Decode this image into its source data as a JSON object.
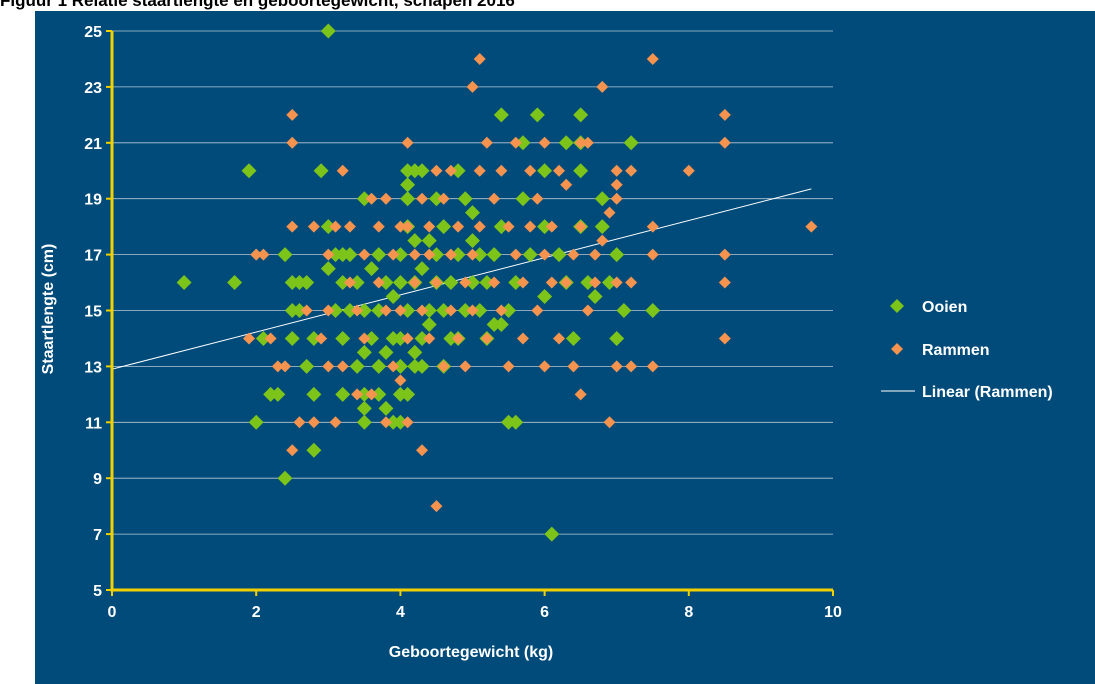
{
  "caption": "Figuur 1 Relatie staartlengte en geboortegewicht, schapen 2016",
  "colors": {
    "background": "#004b7a",
    "axis": "#f2d000",
    "grid": "#b8c8d8",
    "text": "#ffffff",
    "ooien": "#7cc31a",
    "rammen": "#f5934f",
    "trend": "#ffffff"
  },
  "chart_data": {
    "type": "scatter",
    "xlabel": "Geboortegewicht (kg)",
    "ylabel": "Staartlengte (cm)",
    "xlim": [
      0,
      10
    ],
    "ylim": [
      5,
      25
    ],
    "xticks": [
      0,
      2,
      4,
      6,
      8,
      10
    ],
    "yticks": [
      5,
      7,
      9,
      11,
      13,
      15,
      17,
      19,
      21,
      23,
      25
    ],
    "grid": "horizontal",
    "legend_position": "right",
    "series": [
      {
        "name": "Ooien",
        "marker": "diamond",
        "points": [
          [
            1.0,
            16
          ],
          [
            1.7,
            16
          ],
          [
            1.9,
            20
          ],
          [
            2.0,
            11
          ],
          [
            2.1,
            14
          ],
          [
            2.2,
            12
          ],
          [
            2.3,
            12
          ],
          [
            2.4,
            17
          ],
          [
            2.4,
            9
          ],
          [
            2.5,
            16
          ],
          [
            2.5,
            15
          ],
          [
            2.5,
            14
          ],
          [
            2.6,
            15
          ],
          [
            2.6,
            16
          ],
          [
            2.7,
            13
          ],
          [
            2.7,
            16
          ],
          [
            2.8,
            14
          ],
          [
            2.8,
            12
          ],
          [
            2.8,
            10
          ],
          [
            2.9,
            20
          ],
          [
            3.0,
            25
          ],
          [
            3.0,
            16.5
          ],
          [
            3.0,
            18
          ],
          [
            3.1,
            17
          ],
          [
            3.1,
            15
          ],
          [
            3.2,
            16
          ],
          [
            3.2,
            14
          ],
          [
            3.2,
            12
          ],
          [
            3.2,
            17
          ],
          [
            3.3,
            17
          ],
          [
            3.3,
            15
          ],
          [
            3.4,
            13
          ],
          [
            3.4,
            16
          ],
          [
            3.5,
            19
          ],
          [
            3.5,
            11
          ],
          [
            3.5,
            11.5
          ],
          [
            3.5,
            12
          ],
          [
            3.5,
            13.5
          ],
          [
            3.5,
            15
          ],
          [
            3.6,
            16.5
          ],
          [
            3.6,
            14
          ],
          [
            3.7,
            17
          ],
          [
            3.7,
            13
          ],
          [
            3.7,
            12
          ],
          [
            3.7,
            15
          ],
          [
            3.8,
            11.5
          ],
          [
            3.8,
            13.5
          ],
          [
            3.8,
            16
          ],
          [
            3.9,
            11
          ],
          [
            3.9,
            14
          ],
          [
            3.9,
            15.5
          ],
          [
            4.0,
            17
          ],
          [
            4.0,
            16
          ],
          [
            4.0,
            13
          ],
          [
            4.0,
            14
          ],
          [
            4.0,
            12
          ],
          [
            4.0,
            11
          ],
          [
            4.1,
            20
          ],
          [
            4.1,
            19.5
          ],
          [
            4.1,
            19
          ],
          [
            4.1,
            18
          ],
          [
            4.1,
            15
          ],
          [
            4.1,
            12
          ],
          [
            4.2,
            20
          ],
          [
            4.2,
            17.5
          ],
          [
            4.2,
            16
          ],
          [
            4.2,
            13.5
          ],
          [
            4.2,
            13
          ],
          [
            4.3,
            16.5
          ],
          [
            4.3,
            14
          ],
          [
            4.3,
            13
          ],
          [
            4.3,
            20
          ],
          [
            4.4,
            17.5
          ],
          [
            4.4,
            15
          ],
          [
            4.4,
            14.5
          ],
          [
            4.5,
            19
          ],
          [
            4.5,
            16
          ],
          [
            4.5,
            17
          ],
          [
            4.6,
            18
          ],
          [
            4.6,
            15
          ],
          [
            4.6,
            13
          ],
          [
            4.7,
            16
          ],
          [
            4.7,
            14
          ],
          [
            4.8,
            20
          ],
          [
            4.8,
            17
          ],
          [
            4.8,
            14
          ],
          [
            4.9,
            19
          ],
          [
            4.9,
            15
          ],
          [
            5.0,
            18.5
          ],
          [
            5.0,
            16
          ],
          [
            5.0,
            17.5
          ],
          [
            5.1,
            15
          ],
          [
            5.1,
            17
          ],
          [
            5.2,
            14
          ],
          [
            5.2,
            16
          ],
          [
            5.3,
            14.5
          ],
          [
            5.3,
            17
          ],
          [
            5.4,
            22
          ],
          [
            5.4,
            14.5
          ],
          [
            5.4,
            18
          ],
          [
            5.5,
            15
          ],
          [
            5.5,
            11
          ],
          [
            5.6,
            11
          ],
          [
            5.6,
            16
          ],
          [
            5.7,
            21
          ],
          [
            5.7,
            19
          ],
          [
            5.8,
            17
          ],
          [
            5.9,
            22
          ],
          [
            6.0,
            20
          ],
          [
            6.0,
            15.5
          ],
          [
            6.0,
            18
          ],
          [
            6.1,
            7
          ],
          [
            6.2,
            17
          ],
          [
            6.3,
            21
          ],
          [
            6.3,
            16
          ],
          [
            6.4,
            14
          ],
          [
            6.5,
            22
          ],
          [
            6.5,
            21
          ],
          [
            6.5,
            20
          ],
          [
            6.5,
            18
          ],
          [
            6.6,
            16
          ],
          [
            6.7,
            15.5
          ],
          [
            6.8,
            19
          ],
          [
            6.8,
            18
          ],
          [
            6.9,
            16
          ],
          [
            7.0,
            17
          ],
          [
            7.0,
            14
          ],
          [
            7.1,
            15
          ],
          [
            7.2,
            21
          ],
          [
            7.5,
            15
          ]
        ]
      },
      {
        "name": "Rammen",
        "marker": "diamond",
        "points": [
          [
            1.9,
            14
          ],
          [
            2.0,
            17
          ],
          [
            2.1,
            17
          ],
          [
            2.2,
            14
          ],
          [
            2.3,
            13
          ],
          [
            2.4,
            13
          ],
          [
            2.5,
            22
          ],
          [
            2.5,
            21
          ],
          [
            2.5,
            18
          ],
          [
            2.5,
            10
          ],
          [
            2.6,
            11
          ],
          [
            2.7,
            15
          ],
          [
            2.8,
            18
          ],
          [
            2.8,
            11
          ],
          [
            2.9,
            14
          ],
          [
            3.0,
            17
          ],
          [
            3.0,
            15
          ],
          [
            3.0,
            13
          ],
          [
            3.1,
            18
          ],
          [
            3.1,
            11
          ],
          [
            3.2,
            20
          ],
          [
            3.2,
            13
          ],
          [
            3.3,
            18
          ],
          [
            3.3,
            16
          ],
          [
            3.4,
            15
          ],
          [
            3.4,
            12
          ],
          [
            3.5,
            17
          ],
          [
            3.5,
            14
          ],
          [
            3.6,
            19
          ],
          [
            3.6,
            12
          ],
          [
            3.7,
            18
          ],
          [
            3.7,
            16
          ],
          [
            3.8,
            19
          ],
          [
            3.8,
            15
          ],
          [
            3.8,
            11
          ],
          [
            3.9,
            17
          ],
          [
            3.9,
            13
          ],
          [
            4.0,
            18
          ],
          [
            4.0,
            15
          ],
          [
            4.0,
            12.5
          ],
          [
            4.1,
            21
          ],
          [
            4.1,
            18
          ],
          [
            4.1,
            14
          ],
          [
            4.1,
            11
          ],
          [
            4.2,
            16
          ],
          [
            4.2,
            17
          ],
          [
            4.3,
            19
          ],
          [
            4.3,
            15
          ],
          [
            4.3,
            10
          ],
          [
            4.4,
            18
          ],
          [
            4.4,
            17
          ],
          [
            4.4,
            14
          ],
          [
            4.5,
            20
          ],
          [
            4.5,
            8
          ],
          [
            4.5,
            16
          ],
          [
            4.6,
            19
          ],
          [
            4.6,
            13
          ],
          [
            4.7,
            20
          ],
          [
            4.7,
            17
          ],
          [
            4.7,
            15
          ],
          [
            4.8,
            18
          ],
          [
            4.8,
            14
          ],
          [
            4.9,
            16
          ],
          [
            4.9,
            13
          ],
          [
            5.0,
            23
          ],
          [
            5.0,
            17
          ],
          [
            5.0,
            15
          ],
          [
            5.1,
            24
          ],
          [
            5.1,
            20
          ],
          [
            5.1,
            18
          ],
          [
            5.2,
            21
          ],
          [
            5.2,
            14
          ],
          [
            5.3,
            16
          ],
          [
            5.3,
            19
          ],
          [
            5.4,
            20
          ],
          [
            5.4,
            15
          ],
          [
            5.5,
            18
          ],
          [
            5.5,
            13
          ],
          [
            5.6,
            21
          ],
          [
            5.6,
            17
          ],
          [
            5.7,
            16
          ],
          [
            5.7,
            14
          ],
          [
            5.8,
            18
          ],
          [
            5.8,
            20
          ],
          [
            5.9,
            19
          ],
          [
            5.9,
            15
          ],
          [
            6.0,
            21
          ],
          [
            6.0,
            17
          ],
          [
            6.0,
            13
          ],
          [
            6.1,
            18
          ],
          [
            6.1,
            16
          ],
          [
            6.2,
            20
          ],
          [
            6.2,
            14
          ],
          [
            6.3,
            19.5
          ],
          [
            6.3,
            16
          ],
          [
            6.4,
            17
          ],
          [
            6.4,
            13
          ],
          [
            6.5,
            21
          ],
          [
            6.5,
            18
          ],
          [
            6.5,
            12
          ],
          [
            6.6,
            21
          ],
          [
            6.6,
            15
          ],
          [
            6.7,
            17
          ],
          [
            6.7,
            16
          ],
          [
            6.8,
            23
          ],
          [
            6.8,
            17.5
          ],
          [
            6.9,
            18.5
          ],
          [
            6.9,
            11
          ],
          [
            7.0,
            20
          ],
          [
            7.0,
            19.5
          ],
          [
            7.0,
            19
          ],
          [
            7.0,
            16
          ],
          [
            7.0,
            13
          ],
          [
            7.2,
            20
          ],
          [
            7.2,
            16
          ],
          [
            7.2,
            13
          ],
          [
            7.5,
            24
          ],
          [
            7.5,
            18
          ],
          [
            7.5,
            17
          ],
          [
            7.5,
            13
          ],
          [
            8.0,
            20
          ],
          [
            8.5,
            22
          ],
          [
            8.5,
            21
          ],
          [
            8.5,
            17
          ],
          [
            8.5,
            16
          ],
          [
            8.5,
            14
          ],
          [
            9.7,
            18
          ]
        ]
      },
      {
        "name": "Linear (Rammen)",
        "type": "trendline",
        "fit_for": "Rammen",
        "line": [
          [
            0,
            12.9
          ],
          [
            9.7,
            19.35
          ]
        ]
      }
    ]
  }
}
